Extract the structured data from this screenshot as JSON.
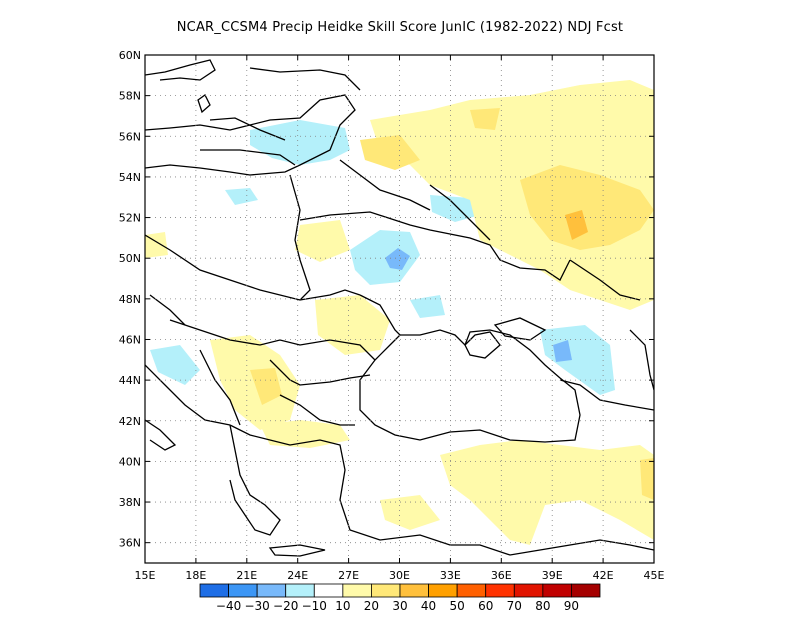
{
  "title": "NCAR_CCSM4 Precip Heidke Skill Score JunIC (1982-2022) NDJ Fcst",
  "map": {
    "lon_range": [
      15,
      45
    ],
    "lat_range": [
      35,
      60
    ],
    "lon_ticks": [
      "15E",
      "18E",
      "21E",
      "24E",
      "27E",
      "30E",
      "33E",
      "36E",
      "39E",
      "42E",
      "45E"
    ],
    "lat_ticks": [
      "36N",
      "38N",
      "40N",
      "42N",
      "44N",
      "46N",
      "48N",
      "50N",
      "52N",
      "54N",
      "56N",
      "58N",
      "60N"
    ],
    "grid": "dotted",
    "projection": "lat-lon",
    "regions_shown": "Eastern Europe, Black Sea, Balkans, Turkey"
  },
  "legend": {
    "placement": "bottom",
    "bins": [
      {
        "color": "#1e6ee6"
      },
      {
        "color": "#3c96f5"
      },
      {
        "color": "#78b9fa"
      },
      {
        "color": "#b4f0fa"
      },
      {
        "color": "#ffffff"
      },
      {
        "color": "#fffaaa"
      },
      {
        "color": "#ffe878"
      },
      {
        "color": "#ffc03c"
      },
      {
        "color": "#ffa000"
      },
      {
        "color": "#ff6000"
      },
      {
        "color": "#ff3200"
      },
      {
        "color": "#e11400"
      },
      {
        "color": "#c00000"
      },
      {
        "color": "#a50000"
      }
    ],
    "labels": [
      "-40",
      "-30",
      "-20",
      "-10",
      "10",
      "20",
      "30",
      "40",
      "50",
      "60",
      "70",
      "80",
      "90"
    ]
  },
  "skill_patches_description": [
    {
      "area": "central Turkey and eastern Turkey",
      "category": "10-20"
    },
    {
      "area": "western Russia near 52N 40E",
      "category": "20-40"
    },
    {
      "area": "northern Ukraine near 50N 27E",
      "category": "-20 to -30"
    },
    {
      "area": "Latvia / Lithuania",
      "category": "-10 to -20"
    },
    {
      "area": "Russia near 46N 40E",
      "category": "-20 to -30"
    }
  ]
}
